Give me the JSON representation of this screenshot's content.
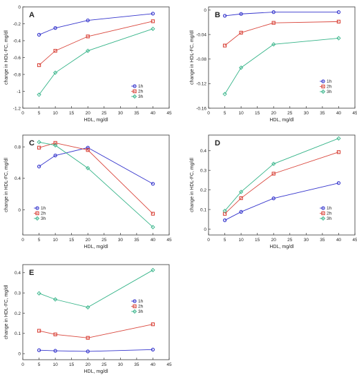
{
  "chart_data": [
    {
      "type": "line",
      "panel_label": "A",
      "xlabel": "HDL, mg/dl",
      "ylabel": "change in HDL-FC, mg/dl",
      "xlim": [
        0,
        45
      ],
      "ylim": [
        -1.2,
        0
      ],
      "xticks": [
        0,
        5,
        10,
        15,
        20,
        25,
        30,
        35,
        40,
        45
      ],
      "xtick_labels": [
        "0",
        "5",
        "10",
        "15",
        "20",
        "25",
        "30",
        "35",
        "40",
        "45"
      ],
      "yticks": [
        -1.2,
        -1,
        -0.8,
        -0.6,
        -0.4,
        -0.2,
        0
      ],
      "ytick_labels": [
        "-1.2",
        "-1",
        "-0.8",
        "-0.6",
        "-0.4",
        "-0.2",
        "0"
      ],
      "grid": false,
      "legend_position": "lower-right",
      "x": [
        5,
        10,
        20,
        40
      ],
      "series": [
        {
          "name": "1h",
          "color": "#3333cc",
          "marker": "circle",
          "values": [
            -0.33,
            -0.25,
            -0.16,
            -0.08
          ]
        },
        {
          "name": "2h",
          "color": "#d9443a",
          "marker": "square",
          "values": [
            -0.69,
            -0.52,
            -0.35,
            -0.17
          ]
        },
        {
          "name": "3h",
          "color": "#33b387",
          "marker": "diamond",
          "values": [
            -1.04,
            -0.78,
            -0.52,
            -0.26
          ]
        }
      ]
    },
    {
      "type": "line",
      "panel_label": "B",
      "xlabel": "HDL, mg/dl",
      "ylabel": "change in HDL-FC, mg/dl",
      "xlim": [
        0,
        45
      ],
      "ylim": [
        -0.16,
        0.005
      ],
      "xticks": [
        0,
        5,
        10,
        15,
        20,
        25,
        30,
        35,
        40,
        45
      ],
      "xtick_labels": [
        "0",
        "5",
        "10",
        "15",
        "20",
        "25",
        "30",
        "35",
        "40",
        "45"
      ],
      "yticks": [
        -0.16,
        -0.12,
        -0.08,
        -0.04,
        0
      ],
      "ytick_labels": [
        "-0.16",
        "-0.12",
        "-0.08",
        "-0.04",
        "0"
      ],
      "grid": false,
      "legend_position": "lower-right",
      "x": [
        5,
        10,
        20,
        40
      ],
      "series": [
        {
          "name": "1h",
          "color": "#3333cc",
          "marker": "circle",
          "values": [
            -0.0095,
            -0.0065,
            -0.0035,
            -0.0035
          ]
        },
        {
          "name": "2h",
          "color": "#d9443a",
          "marker": "square",
          "values": [
            -0.058,
            -0.037,
            -0.021,
            -0.019
          ]
        },
        {
          "name": "3h",
          "color": "#33b387",
          "marker": "diamond",
          "values": [
            -0.137,
            -0.094,
            -0.056,
            -0.046
          ]
        }
      ]
    },
    {
      "type": "line",
      "panel_label": "C",
      "xlabel": "HDL, mg/dl",
      "ylabel": "change in HDL-FC, mg/dl",
      "xlim": [
        0,
        45
      ],
      "ylim": [
        -0.32,
        0.95
      ],
      "xticks": [
        0,
        5,
        10,
        15,
        20,
        25,
        30,
        35,
        40,
        45
      ],
      "xtick_labels": [
        "0",
        "5",
        "10",
        "15",
        "20",
        "25",
        "30",
        "35",
        "40",
        "45"
      ],
      "yticks": [
        0,
        0.4,
        0.8
      ],
      "ytick_labels": [
        "0",
        "0.4",
        "0.8"
      ],
      "grid": false,
      "legend_position": "lower-left",
      "x": [
        5,
        10,
        20,
        40
      ],
      "series": [
        {
          "name": "1h",
          "color": "#3333cc",
          "marker": "circle",
          "values": [
            0.55,
            0.69,
            0.79,
            0.33
          ]
        },
        {
          "name": "2h",
          "color": "#d9443a",
          "marker": "square",
          "values": [
            0.79,
            0.85,
            0.76,
            -0.05
          ]
        },
        {
          "name": "3h",
          "color": "#33b387",
          "marker": "diamond",
          "values": [
            0.86,
            0.82,
            0.53,
            -0.22
          ]
        }
      ]
    },
    {
      "type": "line",
      "panel_label": "D",
      "xlabel": "HDL, mg/dl",
      "ylabel": "change in HDL-FC, mg/dl",
      "xlim": [
        0,
        45
      ],
      "ylim": [
        -0.03,
        0.48
      ],
      "xticks": [
        0,
        5,
        10,
        15,
        20,
        25,
        30,
        35,
        40,
        45
      ],
      "xtick_labels": [
        "0",
        "5",
        "10",
        "15",
        "20",
        "25",
        "30",
        "35",
        "40",
        "45"
      ],
      "yticks": [
        0,
        0.1,
        0.2,
        0.3,
        0.4
      ],
      "ytick_labels": [
        "0",
        "0.1",
        "0.2",
        "0.3",
        "0.4"
      ],
      "grid": false,
      "legend_position": "lower-right",
      "x": [
        5,
        10,
        20,
        40
      ],
      "series": [
        {
          "name": "1h",
          "color": "#3333cc",
          "marker": "circle",
          "values": [
            0.045,
            0.088,
            0.157,
            0.235
          ]
        },
        {
          "name": "2h",
          "color": "#d9443a",
          "marker": "square",
          "values": [
            0.078,
            0.158,
            0.283,
            0.393
          ]
        },
        {
          "name": "3h",
          "color": "#33b387",
          "marker": "diamond",
          "values": [
            0.093,
            0.19,
            0.333,
            0.463
          ]
        }
      ]
    },
    {
      "type": "line",
      "panel_label": "E",
      "xlabel": "HDL, mg/dl",
      "ylabel": "change in HDL-FC, mg/dl",
      "xlim": [
        0,
        45
      ],
      "ylim": [
        -0.03,
        0.44
      ],
      "xticks": [
        0,
        5,
        10,
        15,
        20,
        25,
        30,
        35,
        40,
        45
      ],
      "xtick_labels": [
        "0",
        "5",
        "10",
        "15",
        "20",
        "25",
        "30",
        "35",
        "40",
        "45"
      ],
      "yticks": [
        0,
        0.1,
        0.2,
        0.3,
        0.4
      ],
      "ytick_labels": [
        "0",
        "0.1",
        "0.2",
        "0.3",
        "0.4"
      ],
      "grid": false,
      "legend_position": "right",
      "x": [
        5,
        10,
        20,
        40
      ],
      "series": [
        {
          "name": "1h",
          "color": "#3333cc",
          "marker": "circle",
          "values": [
            0.017,
            0.014,
            0.011,
            0.02
          ]
        },
        {
          "name": "2h",
          "color": "#d9443a",
          "marker": "square",
          "values": [
            0.113,
            0.095,
            0.078,
            0.145
          ]
        },
        {
          "name": "3h",
          "color": "#33b387",
          "marker": "diamond",
          "values": [
            0.298,
            0.268,
            0.229,
            0.413
          ]
        }
      ]
    }
  ]
}
